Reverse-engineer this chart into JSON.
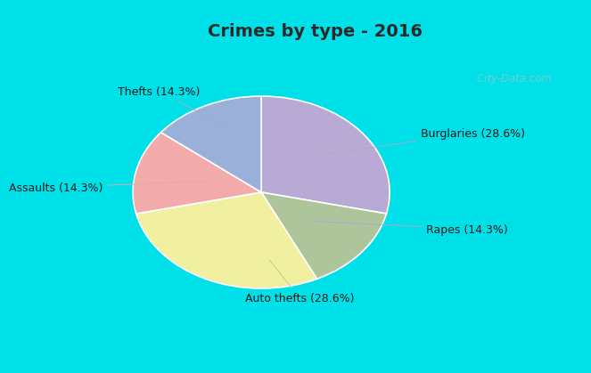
{
  "title": "Crimes by type - 2016",
  "values": [
    28.6,
    14.3,
    28.6,
    14.3,
    14.3
  ],
  "colors": [
    "#b8aad5",
    "#aec49a",
    "#f0f0a0",
    "#f2aaaa",
    "#9ab0d8"
  ],
  "label_texts": [
    "Burglaries (28.6%)",
    "Rapes (14.3%)",
    "Auto thefts (28.6%)",
    "Assaults (14.3%)",
    "Thefts (14.3%)"
  ],
  "bg_color": "#d8f0e0",
  "cyan_color": "#00e0e8",
  "title_color": "#2a2a2a",
  "watermark": " City-Data.com",
  "title_fontsize": 14,
  "label_fontsize": 9,
  "startangle": 90,
  "top_bar_height": 0.115,
  "bottom_bar_height": 0.07
}
